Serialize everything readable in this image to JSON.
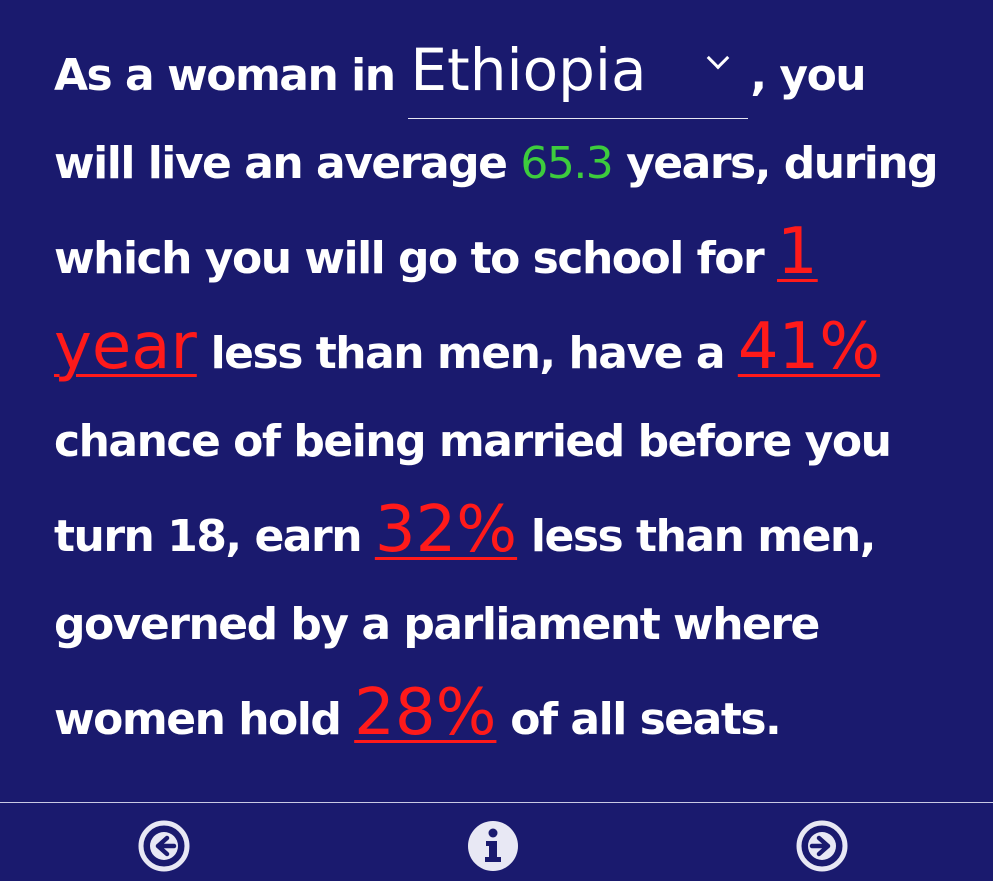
{
  "sentence": {
    "intro": "As a woman in ",
    "country": "Ethiopia",
    "after_country": ", you will live an average ",
    "life_expectancy": "65.3",
    "after_life": " years, during which you will go to school for ",
    "school_gap": "1 year",
    "after_school": " less than men, have a ",
    "child_marriage": "41%",
    "after_marriage": " chance of being married before you turn 18, earn ",
    "pay_gap": "32%",
    "after_pay": " less than men, governed by a parliament where women hold ",
    "parliament_share": "28%",
    "after_parliament": " of all seats."
  },
  "icons": {
    "prev": "arrow-left-circle-icon",
    "info": "info-circle-icon",
    "next": "arrow-right-circle-icon",
    "dropdown": "chevron-down-icon"
  },
  "colors": {
    "background": "#1a1a6e",
    "text": "#ffffff",
    "highlight_green": "#3dcc3d",
    "highlight_red": "#ff1a1a"
  }
}
